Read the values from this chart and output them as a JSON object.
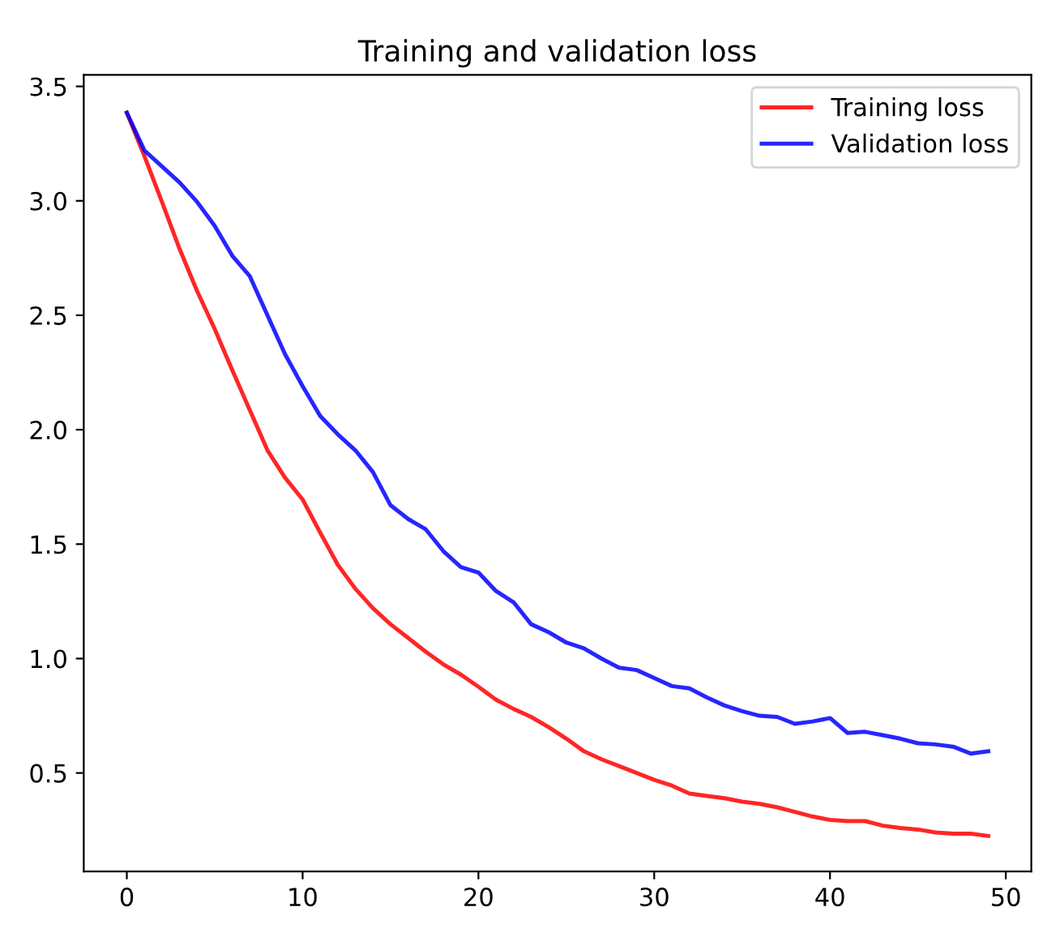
{
  "chart_data": {
    "type": "line",
    "title": "Training and validation loss",
    "x": [
      0,
      1,
      2,
      3,
      4,
      5,
      6,
      7,
      8,
      9,
      10,
      11,
      12,
      13,
      14,
      15,
      16,
      17,
      18,
      19,
      20,
      21,
      22,
      23,
      24,
      25,
      26,
      27,
      28,
      29,
      30,
      31,
      32,
      33,
      34,
      35,
      36,
      37,
      38,
      39,
      40,
      41,
      42,
      43,
      44,
      45,
      46,
      47,
      48,
      49
    ],
    "series": [
      {
        "name": "Training loss",
        "color": "#ff0000",
        "values": [
          3.385,
          3.196,
          2.995,
          2.79,
          2.605,
          2.44,
          2.26,
          2.085,
          1.91,
          1.79,
          1.695,
          1.55,
          1.41,
          1.305,
          1.22,
          1.15,
          1.09,
          1.03,
          0.975,
          0.93,
          0.877,
          0.82,
          0.78,
          0.745,
          0.7,
          0.65,
          0.595,
          0.56,
          0.53,
          0.5,
          0.47,
          0.445,
          0.41,
          0.4,
          0.39,
          0.375,
          0.365,
          0.35,
          0.33,
          0.31,
          0.295,
          0.29,
          0.29,
          0.27,
          0.26,
          0.253,
          0.24,
          0.235,
          0.235,
          0.225
        ]
      },
      {
        "name": "Validation loss",
        "color": "#0000ff",
        "values": [
          3.385,
          3.22,
          3.15,
          3.08,
          2.995,
          2.89,
          2.76,
          2.67,
          2.5,
          2.33,
          2.19,
          2.06,
          1.98,
          1.91,
          1.815,
          1.67,
          1.61,
          1.565,
          1.47,
          1.4,
          1.376,
          1.295,
          1.246,
          1.15,
          1.115,
          1.07,
          1.045,
          1.0,
          0.96,
          0.95,
          0.915,
          0.88,
          0.87,
          0.83,
          0.795,
          0.77,
          0.75,
          0.745,
          0.715,
          0.725,
          0.74,
          0.675,
          0.68,
          0.665,
          0.65,
          0.63,
          0.625,
          0.615,
          0.585,
          0.595
        ]
      }
    ],
    "xlim": [
      -2.45,
      51.45
    ],
    "ylim": [
      0.07,
      3.55
    ],
    "xticks": [
      0,
      10,
      20,
      30,
      40,
      50
    ],
    "yticks": [
      0.5,
      {
        "value": 1,
        "label": "1.0"
      },
      1.5,
      {
        "value": 2,
        "label": "2.0"
      },
      2.5,
      {
        "value": 3,
        "label": "3.0"
      },
      3.5
    ],
    "grid": false,
    "legend": "top right",
    "marker": "none",
    "line_style": "solid"
  }
}
